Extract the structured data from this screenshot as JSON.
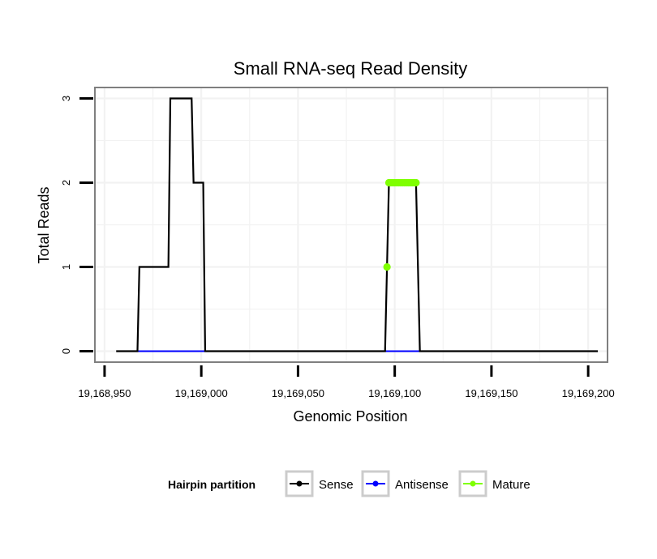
{
  "chart_data": {
    "type": "line",
    "title": "Small RNA-seq Read Density",
    "xlabel": "Genomic Position",
    "ylabel": "Total Reads",
    "xlim": [
      19168945,
      19169210
    ],
    "ylim": [
      -0.13,
      3.13
    ],
    "x_ticks": [
      19168950,
      19169000,
      19169050,
      19169100,
      19169150,
      19169200
    ],
    "x_tick_labels": [
      "19,168,950",
      "19,169,000",
      "19,169,050",
      "19,169,100",
      "19,169,150",
      "19,169,200"
    ],
    "y_ticks": [
      0,
      1,
      2,
      3
    ],
    "y_tick_labels": [
      "0",
      "1",
      "2",
      "3"
    ],
    "grid": true,
    "legend": {
      "title": "Hairpin partition",
      "position": "bottom",
      "entries": [
        {
          "name": "Sense",
          "color": "#000000"
        },
        {
          "name": "Antisense",
          "color": "#0000ff"
        },
        {
          "name": "Mature",
          "color": "#7fff00"
        }
      ]
    },
    "series": [
      {
        "name": "Sense",
        "color": "#000000",
        "style": "step",
        "points": [
          [
            19168956,
            0
          ],
          [
            19168967,
            0
          ],
          [
            19168968,
            1
          ],
          [
            19168983,
            1
          ],
          [
            19168984,
            3
          ],
          [
            19168995,
            3
          ],
          [
            19168996,
            2
          ],
          [
            19169001,
            2
          ],
          [
            19169002,
            0
          ],
          [
            19169095,
            0
          ],
          [
            19169097,
            2
          ],
          [
            19169111,
            2
          ],
          [
            19169113,
            0
          ],
          [
            19169205,
            0
          ]
        ]
      },
      {
        "name": "Antisense",
        "color": "#0000ff",
        "style": "line",
        "points": [
          [
            19168967,
            0
          ],
          [
            19169002,
            0
          ],
          [
            19169095,
            0
          ],
          [
            19169113,
            0
          ]
        ]
      },
      {
        "name": "Mature",
        "color": "#7fff00",
        "style": "points",
        "points": [
          [
            19169096,
            1
          ],
          [
            19169097,
            2
          ],
          [
            19169098,
            2
          ],
          [
            19169099,
            2
          ],
          [
            19169100,
            2
          ],
          [
            19169101,
            2
          ],
          [
            19169102,
            2
          ],
          [
            19169103,
            2
          ],
          [
            19169104,
            2
          ],
          [
            19169105,
            2
          ],
          [
            19169106,
            2
          ],
          [
            19169107,
            2
          ],
          [
            19169108,
            2
          ],
          [
            19169109,
            2
          ],
          [
            19169110,
            2
          ],
          [
            19169111,
            2
          ]
        ]
      }
    ]
  }
}
